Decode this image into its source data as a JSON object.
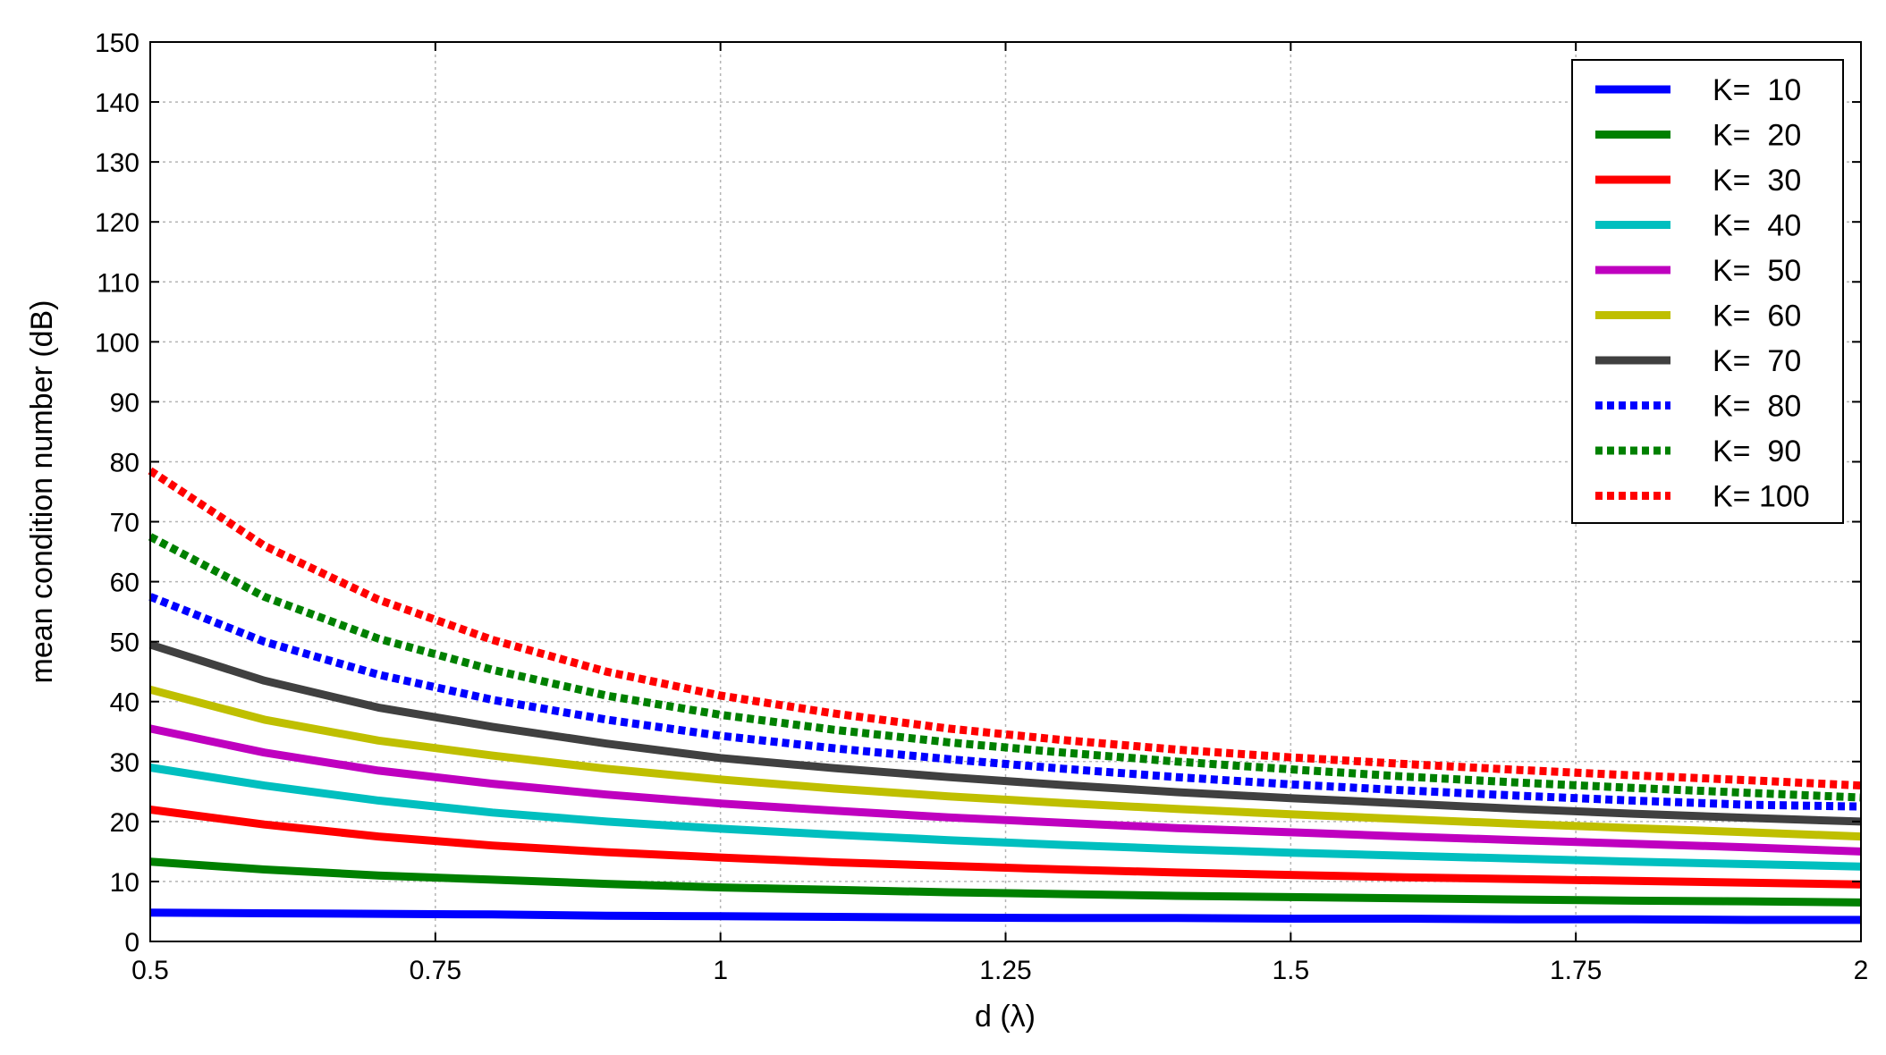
{
  "chart_data": {
    "type": "line",
    "title": "",
    "xlabel": "d (λ)",
    "ylabel": "mean condition number (dB)",
    "xlim": [
      0.5,
      2
    ],
    "ylim": [
      0,
      150
    ],
    "grid": true,
    "legend_position": "top-right",
    "x_ticks": [
      "0.5",
      "0.75",
      "1",
      "1.25",
      "1.5",
      "1.75",
      "2"
    ],
    "y_ticks": [
      "0",
      "10",
      "20",
      "30",
      "40",
      "50",
      "60",
      "70",
      "80",
      "90",
      "100",
      "110",
      "120",
      "130",
      "140",
      "150"
    ],
    "x": [
      0.5,
      0.6,
      0.7,
      0.8,
      0.9,
      1.0,
      1.1,
      1.2,
      1.3,
      1.4,
      1.5,
      1.6,
      1.7,
      1.8,
      1.9,
      2.0
    ],
    "series": [
      {
        "name": "K=  10",
        "color": "#0000ff",
        "style": "solid",
        "values": [
          4.8,
          4.7,
          4.6,
          4.5,
          4.3,
          4.2,
          4.1,
          4.0,
          3.9,
          3.9,
          3.8,
          3.8,
          3.7,
          3.7,
          3.6,
          3.6
        ]
      },
      {
        "name": "K=  20",
        "color": "#008000",
        "style": "solid",
        "values": [
          13.3,
          12.0,
          11.0,
          10.3,
          9.6,
          9.0,
          8.6,
          8.2,
          7.9,
          7.6,
          7.4,
          7.2,
          7.0,
          6.8,
          6.7,
          6.5
        ]
      },
      {
        "name": "K=  30",
        "color": "#ff0000",
        "style": "solid",
        "values": [
          22.0,
          19.5,
          17.5,
          16.0,
          14.9,
          14.0,
          13.2,
          12.6,
          12.0,
          11.5,
          11.1,
          10.7,
          10.4,
          10.1,
          9.8,
          9.5
        ]
      },
      {
        "name": "K=  40",
        "color": "#00bfbf",
        "style": "solid",
        "values": [
          29.0,
          26.0,
          23.5,
          21.5,
          20.0,
          18.8,
          17.8,
          16.9,
          16.1,
          15.4,
          14.8,
          14.3,
          13.8,
          13.3,
          12.9,
          12.5
        ]
      },
      {
        "name": "K=  50",
        "color": "#bf00bf",
        "style": "solid",
        "values": [
          35.5,
          31.5,
          28.5,
          26.3,
          24.5,
          23.0,
          21.8,
          20.7,
          19.8,
          18.9,
          18.2,
          17.5,
          16.9,
          16.3,
          15.7,
          15.0
        ]
      },
      {
        "name": "K=  60",
        "color": "#bfbf00",
        "style": "solid",
        "values": [
          42.0,
          37.0,
          33.5,
          31.0,
          28.8,
          27.0,
          25.5,
          24.2,
          23.1,
          22.1,
          21.2,
          20.4,
          19.6,
          18.9,
          18.2,
          17.5
        ]
      },
      {
        "name": "K=  70",
        "color": "#404040",
        "style": "solid",
        "values": [
          49.5,
          43.5,
          39.0,
          35.8,
          33.0,
          30.6,
          28.9,
          27.4,
          26.1,
          24.9,
          23.9,
          23.0,
          22.1,
          21.3,
          20.6,
          20.0
        ]
      },
      {
        "name": "K=  80",
        "color": "#0000ff",
        "style": "dotted",
        "values": [
          57.5,
          50.0,
          44.5,
          40.3,
          37.0,
          34.3,
          32.2,
          30.4,
          28.8,
          27.4,
          26.2,
          25.2,
          24.3,
          23.5,
          22.8,
          22.5
        ]
      },
      {
        "name": "K=  90",
        "color": "#008000",
        "style": "dotted",
        "values": [
          67.5,
          57.5,
          50.5,
          45.3,
          41.0,
          37.8,
          35.3,
          33.2,
          31.5,
          30.0,
          28.7,
          27.5,
          26.5,
          25.6,
          24.8,
          24.0
        ]
      },
      {
        "name": "K= 100",
        "color": "#ff0000",
        "style": "dotted",
        "values": [
          78.5,
          66.0,
          57.0,
          50.3,
          45.0,
          41.0,
          38.0,
          35.5,
          33.6,
          32.0,
          30.7,
          29.6,
          28.6,
          27.7,
          26.9,
          26.0
        ]
      }
    ]
  }
}
